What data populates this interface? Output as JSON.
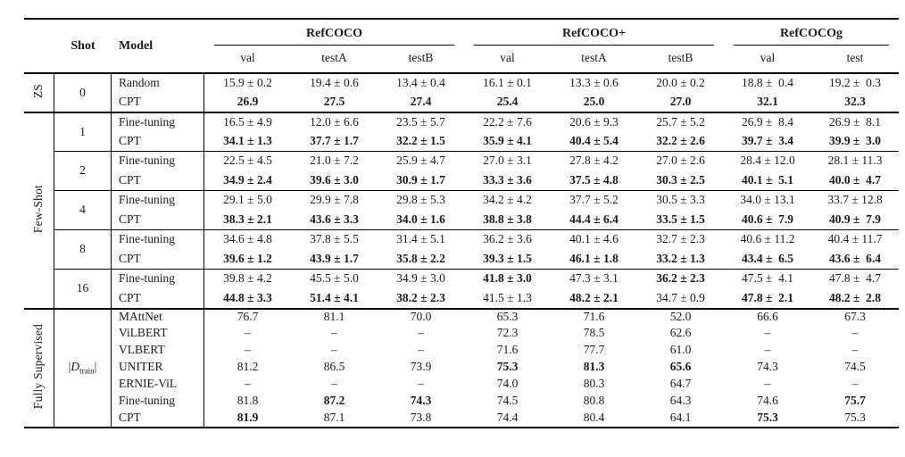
{
  "colors": {
    "background": "#ffffff",
    "text": "#1b1b1b",
    "rule": "#000000"
  },
  "table": {
    "header": {
      "shot": "Shot",
      "model": "Model",
      "groups": [
        {
          "label": "RefCOCO",
          "cols": [
            "val",
            "testA",
            "testB"
          ]
        },
        {
          "label": "RefCOCO+",
          "cols": [
            "val",
            "testA",
            "testB"
          ]
        },
        {
          "label": "RefCOCOg",
          "cols": [
            "val",
            "test"
          ]
        }
      ]
    },
    "sections": [
      {
        "label": "ZS",
        "groups": [
          {
            "shot": "0",
            "rows": [
              {
                "model": "Random",
                "cells": [
                  [
                    "15.9 ± 0.2",
                    0
                  ],
                  [
                    "19.4 ± 0.6",
                    0
                  ],
                  [
                    "13.4 ± 0.4",
                    0
                  ],
                  [
                    "16.1 ± 0.1",
                    0
                  ],
                  [
                    "13.3 ± 0.6",
                    0
                  ],
                  [
                    "20.0 ± 0.2",
                    0
                  ],
                  [
                    "18.8 ±  0.4",
                    0
                  ],
                  [
                    "19.2 ±  0.3",
                    0
                  ]
                ]
              },
              {
                "model": "CPT",
                "cells": [
                  [
                    "26.9",
                    1
                  ],
                  [
                    "27.5",
                    1
                  ],
                  [
                    "27.4",
                    1
                  ],
                  [
                    "25.4",
                    1
                  ],
                  [
                    "25.0",
                    1
                  ],
                  [
                    "27.0",
                    1
                  ],
                  [
                    "32.1",
                    1
                  ],
                  [
                    "32.3",
                    1
                  ]
                ]
              }
            ]
          }
        ]
      },
      {
        "label": "Few-Shot",
        "groups": [
          {
            "shot": "1",
            "rows": [
              {
                "model": "Fine-tuning",
                "cells": [
                  [
                    "16.5 ± 4.9",
                    0
                  ],
                  [
                    "12.0 ± 6.6",
                    0
                  ],
                  [
                    "23.5 ± 5.7",
                    0
                  ],
                  [
                    "22.2 ± 7.6",
                    0
                  ],
                  [
                    "20.6 ± 9.3",
                    0
                  ],
                  [
                    "25.7 ± 5.2",
                    0
                  ],
                  [
                    "26.9 ±  8.4",
                    0
                  ],
                  [
                    "26.9 ±  8.1",
                    0
                  ]
                ]
              },
              {
                "model": "CPT",
                "cells": [
                  [
                    "34.1 ± 1.3",
                    1
                  ],
                  [
                    "37.7 ± 1.7",
                    1
                  ],
                  [
                    "32.2 ± 1.5",
                    1
                  ],
                  [
                    "35.9 ± 4.1",
                    1
                  ],
                  [
                    "40.4 ± 5.4",
                    1
                  ],
                  [
                    "32.2 ± 2.6",
                    1
                  ],
                  [
                    "39.7 ±  3.4",
                    1
                  ],
                  [
                    "39.9 ±  3.0",
                    1
                  ]
                ]
              }
            ]
          },
          {
            "shot": "2",
            "rows": [
              {
                "model": "Fine-tuning",
                "cells": [
                  [
                    "22.5 ± 4.5",
                    0
                  ],
                  [
                    "21.0 ± 7.2",
                    0
                  ],
                  [
                    "25.9 ± 4.7",
                    0
                  ],
                  [
                    "27.0 ± 3.1",
                    0
                  ],
                  [
                    "27.8 ± 4.2",
                    0
                  ],
                  [
                    "27.0 ± 2.6",
                    0
                  ],
                  [
                    "28.4 ± 12.0",
                    0
                  ],
                  [
                    "28.1 ± 11.3",
                    0
                  ]
                ]
              },
              {
                "model": "CPT",
                "cells": [
                  [
                    "34.9 ± 2.4",
                    1
                  ],
                  [
                    "39.6 ± 3.0",
                    1
                  ],
                  [
                    "30.9 ± 1.7",
                    1
                  ],
                  [
                    "33.3 ± 3.6",
                    1
                  ],
                  [
                    "37.5 ± 4.8",
                    1
                  ],
                  [
                    "30.3 ± 2.5",
                    1
                  ],
                  [
                    "40.1 ±  5.1",
                    1
                  ],
                  [
                    "40.0 ±  4.7",
                    1
                  ]
                ]
              }
            ]
          },
          {
            "shot": "4",
            "rows": [
              {
                "model": "Fine-tuning",
                "cells": [
                  [
                    "29.1 ± 5.0",
                    0
                  ],
                  [
                    "29.9 ± 7.8",
                    0
                  ],
                  [
                    "29.8 ± 5.3",
                    0
                  ],
                  [
                    "34.2 ± 4.2",
                    0
                  ],
                  [
                    "37.7 ± 5.2",
                    0
                  ],
                  [
                    "30.5 ± 3.3",
                    0
                  ],
                  [
                    "34.0 ± 13.1",
                    0
                  ],
                  [
                    "33.7 ± 12.8",
                    0
                  ]
                ]
              },
              {
                "model": "CPT",
                "cells": [
                  [
                    "38.3 ± 2.1",
                    1
                  ],
                  [
                    "43.6 ± 3.3",
                    1
                  ],
                  [
                    "34.0 ± 1.6",
                    1
                  ],
                  [
                    "38.8 ± 3.8",
                    1
                  ],
                  [
                    "44.4 ± 6.4",
                    1
                  ],
                  [
                    "33.5 ± 1.5",
                    1
                  ],
                  [
                    "40.6 ±  7.9",
                    1
                  ],
                  [
                    "40.9 ±  7.9",
                    1
                  ]
                ]
              }
            ]
          },
          {
            "shot": "8",
            "rows": [
              {
                "model": "Fine-tuning",
                "cells": [
                  [
                    "34.6 ± 4.8",
                    0
                  ],
                  [
                    "37.8 ± 5.5",
                    0
                  ],
                  [
                    "31.4 ± 5.1",
                    0
                  ],
                  [
                    "36.2 ± 3.6",
                    0
                  ],
                  [
                    "40.1 ± 4.6",
                    0
                  ],
                  [
                    "32.7 ± 2.3",
                    0
                  ],
                  [
                    "40.6 ± 11.2",
                    0
                  ],
                  [
                    "40.4 ± 11.7",
                    0
                  ]
                ]
              },
              {
                "model": "CPT",
                "cells": [
                  [
                    "39.6 ± 1.2",
                    1
                  ],
                  [
                    "43.9 ± 1.7",
                    1
                  ],
                  [
                    "35.8 ± 2.2",
                    1
                  ],
                  [
                    "39.3 ± 1.5",
                    1
                  ],
                  [
                    "46.1 ± 1.8",
                    1
                  ],
                  [
                    "33.2 ± 1.3",
                    1
                  ],
                  [
                    "43.4 ±  6.5",
                    1
                  ],
                  [
                    "43.6 ±  6.4",
                    1
                  ]
                ]
              }
            ]
          },
          {
            "shot": "16",
            "rows": [
              {
                "model": "Fine-tuning",
                "cells": [
                  [
                    "39.8 ± 4.2",
                    0
                  ],
                  [
                    "45.5 ± 5.0",
                    0
                  ],
                  [
                    "34.9 ± 3.0",
                    0
                  ],
                  [
                    "41.8 ± 3.0",
                    1
                  ],
                  [
                    "47.3 ± 3.1",
                    0
                  ],
                  [
                    "36.2 ± 2.3",
                    1
                  ],
                  [
                    "47.5 ±  4.1",
                    0
                  ],
                  [
                    "47.8 ±  4.7",
                    0
                  ]
                ]
              },
              {
                "model": "CPT",
                "cells": [
                  [
                    "44.8 ± 3.3",
                    1
                  ],
                  [
                    "51.4 ± 4.1",
                    1
                  ],
                  [
                    "38.2 ± 2.3",
                    1
                  ],
                  [
                    "41.5 ± 1.3",
                    0
                  ],
                  [
                    "48.2 ± 2.1",
                    1
                  ],
                  [
                    "34.7 ± 0.9",
                    0
                  ],
                  [
                    "47.8 ±  2.1",
                    1
                  ],
                  [
                    "48.2 ±  2.8",
                    1
                  ]
                ]
              }
            ]
          }
        ]
      },
      {
        "label": "Fully Supervised",
        "groups": [
          {
            "shot": {
              "open": "|",
              "letter": "D",
              "sub": "train",
              "close": "|"
            },
            "rows": [
              {
                "model": "MAttNet",
                "cells": [
                  [
                    "76.7",
                    0
                  ],
                  [
                    "81.1",
                    0
                  ],
                  [
                    "70.0",
                    0
                  ],
                  [
                    "65.3",
                    0
                  ],
                  [
                    "71.6",
                    0
                  ],
                  [
                    "52.0",
                    0
                  ],
                  [
                    "66.6",
                    0
                  ],
                  [
                    "67.3",
                    0
                  ]
                ]
              },
              {
                "model": "ViLBERT",
                "cells": [
                  [
                    "–",
                    0
                  ],
                  [
                    "–",
                    0
                  ],
                  [
                    "–",
                    0
                  ],
                  [
                    "72.3",
                    0
                  ],
                  [
                    "78.5",
                    0
                  ],
                  [
                    "62.6",
                    0
                  ],
                  [
                    "–",
                    0
                  ],
                  [
                    "–",
                    0
                  ]
                ]
              },
              {
                "model": "VLBERT",
                "cells": [
                  [
                    "–",
                    0
                  ],
                  [
                    "–",
                    0
                  ],
                  [
                    "–",
                    0
                  ],
                  [
                    "71.6",
                    0
                  ],
                  [
                    "77.7",
                    0
                  ],
                  [
                    "61.0",
                    0
                  ],
                  [
                    "–",
                    0
                  ],
                  [
                    "–",
                    0
                  ]
                ]
              },
              {
                "model": "UNITER",
                "cells": [
                  [
                    "81.2",
                    0
                  ],
                  [
                    "86.5",
                    0
                  ],
                  [
                    "73.9",
                    0
                  ],
                  [
                    "75.3",
                    1
                  ],
                  [
                    "81.3",
                    1
                  ],
                  [
                    "65.6",
                    1
                  ],
                  [
                    "74.3",
                    0
                  ],
                  [
                    "74.5",
                    0
                  ]
                ]
              },
              {
                "model": "ERNIE-ViL",
                "cells": [
                  [
                    "–",
                    0
                  ],
                  [
                    "–",
                    0
                  ],
                  [
                    "–",
                    0
                  ],
                  [
                    "74.0",
                    0
                  ],
                  [
                    "80.3",
                    0
                  ],
                  [
                    "64.7",
                    0
                  ],
                  [
                    "–",
                    0
                  ],
                  [
                    "–",
                    0
                  ]
                ]
              },
              {
                "model": "Fine-tuning",
                "cells": [
                  [
                    "81.8",
                    0
                  ],
                  [
                    "87.2",
                    1
                  ],
                  [
                    "74.3",
                    1
                  ],
                  [
                    "74.5",
                    0
                  ],
                  [
                    "80.8",
                    0
                  ],
                  [
                    "64.3",
                    0
                  ],
                  [
                    "74.6",
                    0
                  ],
                  [
                    "75.7",
                    1
                  ]
                ]
              },
              {
                "model": "CPT",
                "cells": [
                  [
                    "81.9",
                    1
                  ],
                  [
                    "87.1",
                    0
                  ],
                  [
                    "73.8",
                    0
                  ],
                  [
                    "74.4",
                    0
                  ],
                  [
                    "80.4",
                    0
                  ],
                  [
                    "64.1",
                    0
                  ],
                  [
                    "75.3",
                    1
                  ],
                  [
                    "75.3",
                    0
                  ]
                ]
              }
            ]
          }
        ]
      }
    ]
  }
}
